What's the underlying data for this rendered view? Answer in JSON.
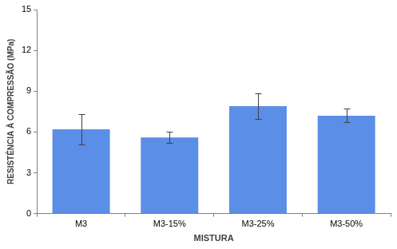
{
  "chart_data": {
    "type": "bar",
    "x_label": "MISTURA",
    "y_label": "RESISTÊNCIA À COMPRESSÃO (MPa)",
    "categories": [
      "M3",
      "M3-15%",
      "M3-25%",
      "M3-50%"
    ],
    "values": [
      6.2,
      5.6,
      7.9,
      7.2
    ],
    "errors": [
      1.1,
      0.4,
      0.95,
      0.5
    ],
    "color": "#5b8ee6",
    "ylim": [
      0,
      15
    ],
    "yticks": [
      0,
      3,
      6,
      9,
      12,
      15
    ],
    "grid": false
  }
}
